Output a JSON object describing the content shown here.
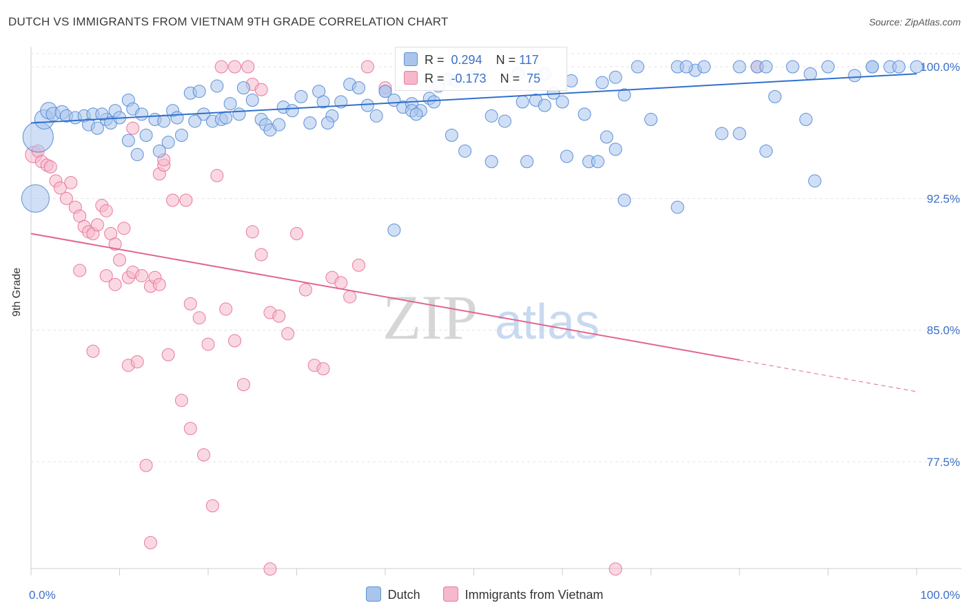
{
  "title": "DUTCH VS IMMIGRANTS FROM VIETNAM 9TH GRADE CORRELATION CHART",
  "source": "Source: ZipAtlas.com",
  "watermark": {
    "zip": "ZIP",
    "atlas": "atlas"
  },
  "legend": {
    "rows": [
      {
        "r_label": "R =",
        "r_value": "0.294",
        "n_label": "N =",
        "n_value": "117"
      },
      {
        "r_label": "R =",
        "r_value": "-0.173",
        "n_label": "N =",
        "n_value": "75"
      }
    ]
  },
  "bottom_legend": [
    "Dutch",
    "Immigrants from Vietnam"
  ],
  "colors": {
    "blue_fill": "#a9c5ec",
    "blue_stroke": "#5b8fd6",
    "blue_line": "#2f6fce",
    "pink_fill": "#f6b8cb",
    "pink_stroke": "#e8789c",
    "pink_line": "#e2648f",
    "tick_label": "#3a6fc7",
    "grid": "#e3e3e3"
  },
  "chart_data": {
    "type": "scatter",
    "title": "DUTCH VS IMMIGRANTS FROM VIETNAM 9TH GRADE CORRELATION CHART",
    "xlabel": "",
    "ylabel": "9th Grade",
    "xlim": [
      0,
      100
    ],
    "ylim": [
      71.0,
      101.0
    ],
    "x_tick_labels": [
      "0.0%",
      "100.0%"
    ],
    "y_ticks": [
      100.0,
      92.5,
      85.0,
      77.5
    ],
    "y_tick_labels": [
      "100.0%",
      "92.5%",
      "85.0%",
      "77.5%"
    ],
    "grid": true,
    "series": [
      {
        "name": "Dutch",
        "r": 0.294,
        "n": 117,
        "trend": {
          "x": [
            0,
            100
          ],
          "y": [
            96.8,
            99.6
          ]
        },
        "points": [
          [
            0.8,
            96.0,
            22
          ],
          [
            0.5,
            92.5,
            20
          ],
          [
            1.5,
            97.0,
            14
          ],
          [
            2.0,
            97.5,
            12
          ],
          [
            2.5,
            97.3,
            10
          ],
          [
            3.5,
            97.4,
            10
          ],
          [
            4.0,
            97.2,
            9
          ],
          [
            5.0,
            97.1,
            9
          ],
          [
            6.0,
            97.2,
            9
          ],
          [
            7.0,
            97.3,
            9
          ],
          [
            6.5,
            96.7,
            9
          ],
          [
            7.5,
            96.5,
            9
          ],
          [
            8.5,
            97.0,
            9
          ],
          [
            9.0,
            96.8,
            9
          ],
          [
            8.0,
            97.3,
            9
          ],
          [
            9.5,
            97.5,
            9
          ],
          [
            11.0,
            98.1,
            9
          ],
          [
            11.5,
            97.6,
            9
          ],
          [
            12.5,
            97.3,
            9
          ],
          [
            14.0,
            97.0,
            9
          ],
          [
            15.0,
            96.9,
            9
          ],
          [
            16.0,
            97.5,
            9
          ],
          [
            17.0,
            96.1,
            9
          ],
          [
            19.5,
            97.3,
            9
          ],
          [
            20.5,
            96.9,
            9
          ],
          [
            21.5,
            97.0,
            9
          ],
          [
            22.5,
            97.9,
            9
          ],
          [
            23.5,
            97.3,
            9
          ],
          [
            24.0,
            98.8,
            9
          ],
          [
            25.0,
            98.1,
            9
          ],
          [
            26.0,
            97.0,
            9
          ],
          [
            26.5,
            96.7,
            9
          ],
          [
            27.0,
            96.4,
            9
          ],
          [
            28.5,
            97.7,
            9
          ],
          [
            29.5,
            97.5,
            9
          ],
          [
            30.5,
            98.3,
            9
          ],
          [
            31.5,
            96.8,
            9
          ],
          [
            32.5,
            98.6,
            9
          ],
          [
            33.0,
            98.0,
            9
          ],
          [
            34.0,
            97.2,
            9
          ],
          [
            35.0,
            98.0,
            9
          ],
          [
            36.0,
            99.0,
            9
          ],
          [
            37.0,
            98.8,
            9
          ],
          [
            38.0,
            97.8,
            9
          ],
          [
            39.0,
            97.2,
            9
          ],
          [
            40.0,
            98.6,
            9
          ],
          [
            41.0,
            98.1,
            9
          ],
          [
            42.0,
            97.7,
            9
          ],
          [
            43.0,
            97.9,
            9
          ],
          [
            44.0,
            97.5,
            9
          ],
          [
            45.0,
            98.2,
            9
          ],
          [
            46.0,
            98.9,
            9
          ],
          [
            47.0,
            99.3,
            9
          ],
          [
            48.0,
            99.2,
            9
          ],
          [
            50.0,
            99.4,
            9
          ],
          [
            52.0,
            97.2,
            9
          ],
          [
            53.5,
            96.9,
            9
          ],
          [
            55.0,
            99.6,
            9
          ],
          [
            56.0,
            94.6,
            9
          ],
          [
            57.0,
            98.1,
            9
          ],
          [
            58.0,
            99.6,
            9
          ],
          [
            59.0,
            98.5,
            9
          ],
          [
            60.0,
            98.0,
            9
          ],
          [
            61.0,
            99.2,
            9
          ],
          [
            62.5,
            97.3,
            9
          ],
          [
            64.5,
            99.1,
            9
          ],
          [
            66.0,
            99.4,
            9
          ],
          [
            67.0,
            98.4,
            9
          ],
          [
            68.5,
            100.0,
            9
          ],
          [
            70.0,
            97.0,
            9
          ],
          [
            73.0,
            100.0,
            9
          ],
          [
            75.0,
            99.8,
            9
          ],
          [
            78.0,
            96.2,
            9
          ],
          [
            80.0,
            96.2,
            9
          ],
          [
            82.0,
            100.0,
            9
          ],
          [
            83.0,
            95.2,
            9
          ],
          [
            84.0,
            98.3,
            9
          ],
          [
            87.5,
            97.0,
            9
          ],
          [
            88.5,
            93.5,
            9
          ],
          [
            90.0,
            100.0,
            9
          ],
          [
            93.0,
            99.5,
            9
          ],
          [
            95.0,
            100.0,
            9
          ],
          [
            97.0,
            100.0,
            9
          ],
          [
            100.0,
            100.0,
            9
          ],
          [
            10.0,
            97.1,
            9
          ],
          [
            11.0,
            95.8,
            9
          ],
          [
            12.0,
            95.0,
            9
          ],
          [
            13.0,
            96.1,
            9
          ],
          [
            14.5,
            95.2,
            9
          ],
          [
            15.5,
            95.7,
            9
          ],
          [
            18.0,
            98.5,
            9
          ],
          [
            19.0,
            98.6,
            9
          ],
          [
            21.0,
            98.9,
            9
          ],
          [
            40.0,
            98.6,
            9
          ],
          [
            41.0,
            90.7,
            9
          ],
          [
            43.0,
            97.5,
            9
          ],
          [
            47.5,
            96.1,
            9
          ],
          [
            49.0,
            95.2,
            9
          ],
          [
            52.0,
            94.6,
            9
          ],
          [
            55.5,
            98.0,
            9
          ],
          [
            58.0,
            97.8,
            9
          ],
          [
            60.5,
            94.9,
            9
          ],
          [
            63.0,
            94.6,
            9
          ],
          [
            64.0,
            94.6,
            9
          ],
          [
            65.0,
            96.0,
            9
          ],
          [
            66.0,
            95.3,
            9
          ],
          [
            67.0,
            92.4,
            9
          ],
          [
            73.0,
            92.0,
            9
          ],
          [
            74.0,
            100.0,
            9
          ],
          [
            76.0,
            100.0,
            9
          ],
          [
            80.0,
            100.0,
            9
          ],
          [
            83.0,
            100.0,
            9
          ],
          [
            86.0,
            100.0,
            9
          ],
          [
            88.0,
            99.6,
            9
          ],
          [
            95.0,
            100.0,
            9
          ],
          [
            98.0,
            100.0,
            9
          ],
          [
            43.5,
            97.3,
            9
          ],
          [
            45.5,
            98.0,
            9
          ],
          [
            33.5,
            96.8,
            9
          ],
          [
            28.0,
            96.7,
            9
          ],
          [
            22.0,
            97.1,
            9
          ],
          [
            18.5,
            96.9,
            9
          ],
          [
            16.5,
            97.1,
            9
          ]
        ]
      },
      {
        "name": "Immigrants from Vietnam",
        "r": -0.173,
        "n": 75,
        "trend": {
          "x": [
            0,
            80
          ],
          "y": [
            90.5,
            83.3
          ]
        },
        "trend_dashed": {
          "x": [
            80,
            100
          ],
          "y": [
            83.3,
            81.5
          ]
        },
        "points": [
          [
            0.3,
            95.0,
            12
          ],
          [
            0.8,
            95.2,
            9
          ],
          [
            1.2,
            94.6,
            9
          ],
          [
            1.8,
            94.4,
            9
          ],
          [
            2.2,
            94.3,
            9
          ],
          [
            2.8,
            93.5,
            9
          ],
          [
            3.3,
            93.1,
            9
          ],
          [
            4.0,
            92.5,
            9
          ],
          [
            4.5,
            93.4,
            9
          ],
          [
            5.0,
            92.0,
            9
          ],
          [
            5.5,
            91.5,
            9
          ],
          [
            6.0,
            90.9,
            9
          ],
          [
            6.5,
            90.6,
            9
          ],
          [
            7.0,
            90.5,
            9
          ],
          [
            7.5,
            91.0,
            9
          ],
          [
            8.0,
            92.1,
            9
          ],
          [
            8.5,
            91.8,
            9
          ],
          [
            9.0,
            90.5,
            9
          ],
          [
            9.5,
            89.9,
            9
          ],
          [
            10.0,
            89.0,
            9
          ],
          [
            10.5,
            90.8,
            9
          ],
          [
            11.0,
            88.0,
            9
          ],
          [
            11.5,
            88.3,
            9
          ],
          [
            12.5,
            88.1,
            9
          ],
          [
            13.5,
            87.5,
            9
          ],
          [
            14.5,
            93.9,
            9
          ],
          [
            15.0,
            94.4,
            9
          ],
          [
            16.0,
            92.4,
            9
          ],
          [
            17.5,
            92.4,
            9
          ],
          [
            18.0,
            86.5,
            9
          ],
          [
            19.0,
            85.7,
            9
          ],
          [
            20.0,
            84.2,
            9
          ],
          [
            21.0,
            93.8,
            9
          ],
          [
            22.0,
            86.2,
            9
          ],
          [
            23.0,
            84.4,
            9
          ],
          [
            24.0,
            81.9,
            9
          ],
          [
            25.0,
            90.6,
            9
          ],
          [
            26.0,
            89.3,
            9
          ],
          [
            27.0,
            86.0,
            9
          ],
          [
            28.0,
            85.8,
            9
          ],
          [
            29.0,
            84.8,
            9
          ],
          [
            30.0,
            90.5,
            9
          ],
          [
            31.0,
            87.3,
            9
          ],
          [
            32.0,
            83.0,
            9
          ],
          [
            33.0,
            82.8,
            9
          ],
          [
            34.0,
            88.0,
            9
          ],
          [
            35.0,
            87.7,
            9
          ],
          [
            36.0,
            86.9,
            9
          ],
          [
            37.0,
            88.7,
            9
          ],
          [
            38.0,
            100.0,
            9
          ],
          [
            40.0,
            98.8,
            9
          ],
          [
            5.5,
            88.4,
            9
          ],
          [
            7.0,
            83.8,
            9
          ],
          [
            8.5,
            88.1,
            9
          ],
          [
            9.5,
            87.6,
            9
          ],
          [
            11.0,
            83.0,
            9
          ],
          [
            12.0,
            83.2,
            9
          ],
          [
            13.0,
            77.3,
            9
          ],
          [
            13.5,
            72.9,
            9
          ],
          [
            14.0,
            88.0,
            9
          ],
          [
            14.5,
            87.6,
            9
          ],
          [
            15.5,
            83.6,
            9
          ],
          [
            17.0,
            81.0,
            9
          ],
          [
            18.0,
            79.4,
            9
          ],
          [
            19.5,
            77.9,
            9
          ],
          [
            20.5,
            75.0,
            9
          ],
          [
            21.5,
            100.0,
            9
          ],
          [
            23.0,
            100.0,
            9
          ],
          [
            24.5,
            100.0,
            9
          ],
          [
            25.0,
            99.0,
            9
          ],
          [
            26.0,
            98.7,
            9
          ],
          [
            27.0,
            71.4,
            9
          ],
          [
            11.5,
            96.5,
            9
          ],
          [
            15.0,
            94.7,
            9
          ],
          [
            66.0,
            71.4,
            9
          ],
          [
            82.0,
            100.0,
            9
          ]
        ]
      }
    ]
  }
}
